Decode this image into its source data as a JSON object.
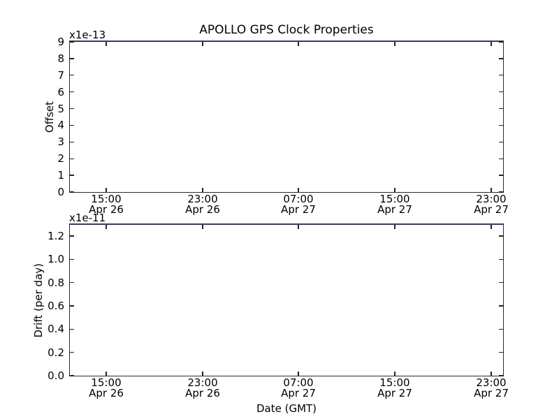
{
  "figure": {
    "title": "APOLLO GPS Clock Properties",
    "xlabel": "Date (GMT)",
    "background_color": "#ffffff",
    "spine_color": "#2b2b2b",
    "top_edge_color": "#3a3a60",
    "text_color": "#000000"
  },
  "top_plot": {
    "ylabel": "Offset",
    "offset_text": "x1e-13",
    "yticks": [
      "9",
      "8",
      "7",
      "6",
      "5",
      "4",
      "3",
      "2",
      "1",
      "0"
    ],
    "xticks_time": [
      "15:00",
      "23:00",
      "07:00",
      "15:00",
      "23:00"
    ],
    "xticks_date": [
      "Apr 26",
      "Apr 26",
      "Apr 27",
      "Apr 27",
      "Apr 27"
    ]
  },
  "bottom_plot": {
    "ylabel": "Drift (per day)",
    "offset_text": "x1e-11",
    "yticks": [
      "1.2",
      "1.0",
      "0.8",
      "0.6",
      "0.4",
      "0.2",
      "0.0"
    ],
    "xticks_time": [
      "15:00",
      "23:00",
      "07:00",
      "15:00",
      "23:00"
    ],
    "xticks_date": [
      "Apr 26",
      "Apr 26",
      "Apr 27",
      "Apr 27",
      "Apr 27"
    ]
  },
  "chart_data": [
    {
      "type": "line",
      "title": "APOLLO GPS Clock Properties",
      "ylabel": "Offset",
      "y_scale_label": "x1e-13",
      "ylim": [
        0,
        9
      ],
      "yticks": [
        0,
        1,
        2,
        3,
        4,
        5,
        6,
        7,
        8,
        9
      ],
      "xticks": [
        "15:00 Apr 26",
        "23:00 Apr 26",
        "07:00 Apr 27",
        "15:00 Apr 27",
        "23:00 Apr 27"
      ],
      "series": [],
      "grid": false,
      "legend": false,
      "notes": "axes empty - no visible data points; dark blue horizontal line drawn along the top spine"
    },
    {
      "type": "line",
      "title": "",
      "ylabel": "Drift (per day)",
      "y_scale_label": "x1e-11",
      "xlabel": "Date (GMT)",
      "ylim": [
        0,
        1.3
      ],
      "yticks": [
        0.0,
        0.2,
        0.4,
        0.6,
        0.8,
        1.0,
        1.2
      ],
      "xticks": [
        "15:00 Apr 26",
        "23:00 Apr 26",
        "07:00 Apr 27",
        "15:00 Apr 27",
        "23:00 Apr 27"
      ],
      "series": [],
      "grid": false,
      "legend": false,
      "notes": "axes empty - no visible data points; dark blue horizontal line drawn along the top spine"
    }
  ]
}
